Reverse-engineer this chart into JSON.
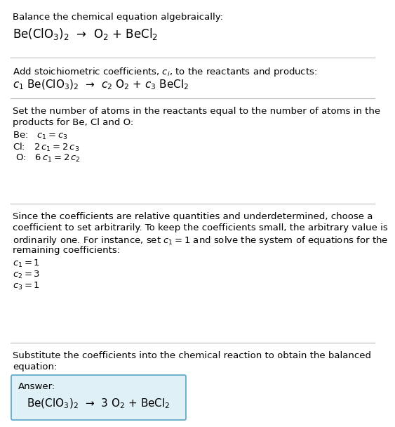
{
  "title_line": "Balance the chemical equation algebraically:",
  "equation_line": "Be(ClO$_3$)$_2$  →  O$_2$ + BeCl$_2$",
  "section2_intro": "Add stoichiometric coefficients, $c_i$, to the reactants and products:",
  "section2_eq": "$c_1$ Be(ClO$_3$)$_2$  →  $c_2$ O$_2$ + $c_3$ BeCl$_2$",
  "section3_intro": "Set the number of atoms in the reactants equal to the number of atoms in the\nproducts for Be, Cl and O:",
  "section3_be": "Be:   $c_1 = c_3$",
  "section3_cl": "Cl:   $2\\,c_1 = 2\\,c_3$",
  "section3_o": " O:   $6\\,c_1 = 2\\,c_2$",
  "section4_text_1": "Since the coefficients are relative quantities and underdetermined, choose a",
  "section4_text_2": "coefficient to set arbitrarily. To keep the coefficients small, the arbitrary value is",
  "section4_text_3": "ordinarily one. For instance, set $c_1 = 1$ and solve the system of equations for the",
  "section4_text_4": "remaining coefficients:",
  "section4_c1": "$c_1 = 1$",
  "section4_c2": "$c_2 = 3$",
  "section4_c3": "$c_3 = 1$",
  "section5_intro_1": "Substitute the coefficients into the chemical reaction to obtain the balanced",
  "section5_intro_2": "equation:",
  "answer_label": "Answer:",
  "answer_eq": "Be(ClO$_3$)$_2$  →  3 O$_2$ + BeCl$_2$",
  "bg_color": "#ffffff",
  "box_bg": "#dff0f7",
  "box_border": "#5ba3c9",
  "separator_color": "#bbbbbb",
  "text_color": "#000000",
  "font_size": 9.5
}
